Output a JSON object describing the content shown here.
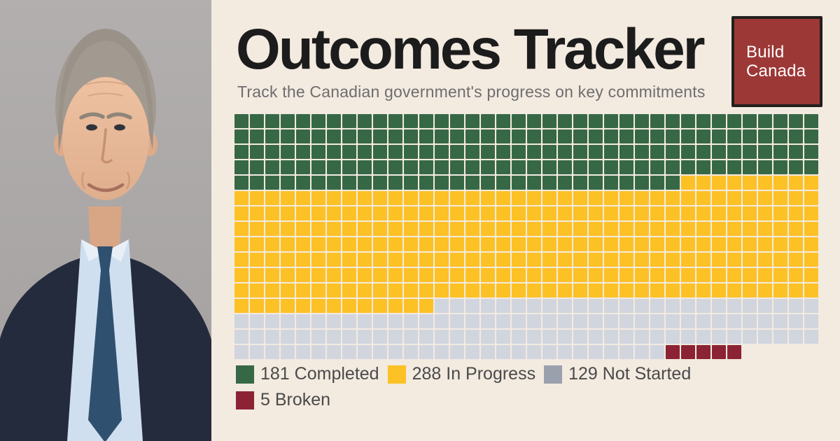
{
  "page": {
    "background_color": "#f3eae0"
  },
  "photo": {
    "description": "Portrait photo of a gray-haired man in a dark navy suit, light blue shirt and navy tie against a gray studio background"
  },
  "header": {
    "title": "Outcomes Tracker",
    "subtitle": "Track the Canadian government's progress on key commitments",
    "title_color": "#1c1c1c",
    "subtitle_color": "#6e6e6e"
  },
  "badge": {
    "line1": "Build",
    "line2": "Canada",
    "background_color": "#9c3836",
    "border_color": "#221f1c",
    "text_color": "#ffffff"
  },
  "chart_data": {
    "type": "waffle",
    "title": "Outcomes Tracker",
    "total_units": 603,
    "columns": 38,
    "rows": 16,
    "fill_order": "row-major, left-to-right, top-to-bottom",
    "last_row_units": 33,
    "categories": [
      {
        "label": "Completed",
        "count": 181,
        "color": "#376845"
      },
      {
        "label": "In Progress",
        "count": 288,
        "color": "#fcc125"
      },
      {
        "label": "Not Started",
        "count": 129,
        "color": "#d1d5de"
      },
      {
        "label": "Broken",
        "count": 5,
        "color": "#8c2334"
      }
    ]
  },
  "legend": {
    "text_color": "#4a4a4a",
    "items": [
      {
        "count": "181",
        "label": "Completed",
        "swatch": "#376845"
      },
      {
        "count": "288",
        "label": "In Progress",
        "swatch": "#fcc125"
      },
      {
        "count": "129",
        "label": "Not Started",
        "swatch": "#9aa0ac"
      },
      {
        "count": "5",
        "label": "Broken",
        "swatch": "#8c2334"
      }
    ]
  }
}
